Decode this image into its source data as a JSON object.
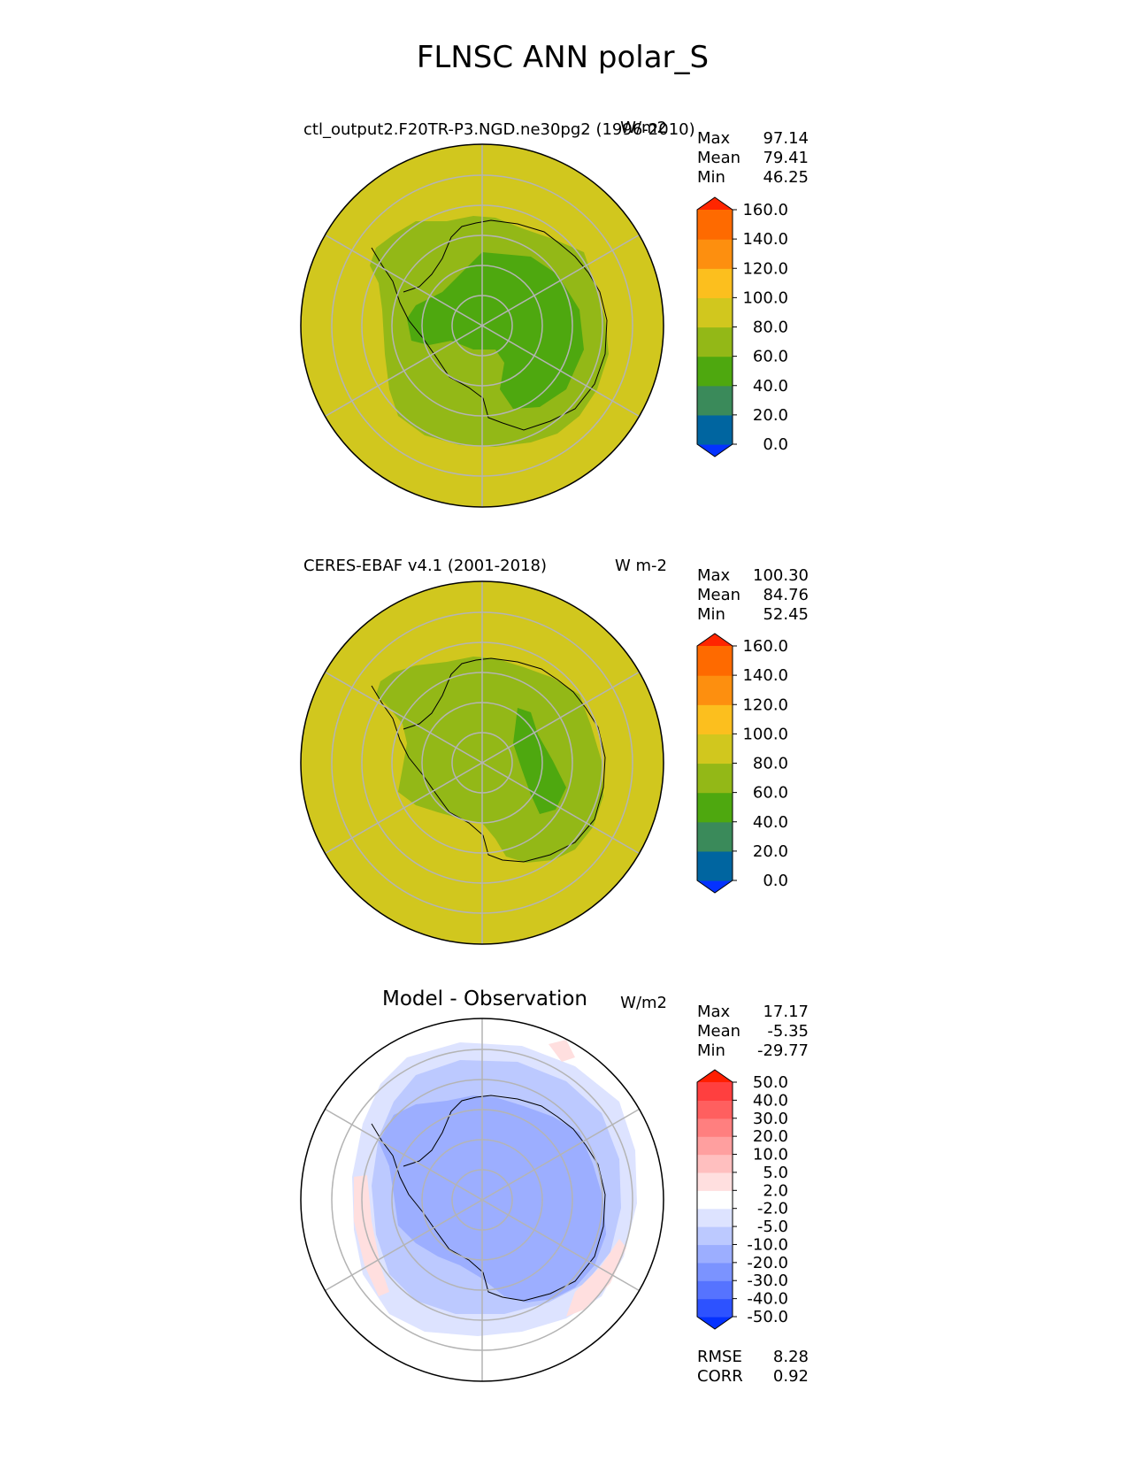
{
  "figure": {
    "title": "FLNSC ANN polar_S"
  },
  "colors": {
    "ocean_field": "#d1c71e",
    "continent_field": "#93b817",
    "interior_field": "#4ea80f",
    "coastline": "#000000",
    "grid": "#b4b4b4"
  },
  "chart_data": [
    {
      "type": "heatmap",
      "projection": "south-polar-stereographic",
      "title": "ctl_output2.F20TR-P3.NGD.ne30pg2 (1996-2010)",
      "units": "W/m2",
      "stats": [
        {
          "label": "Max",
          "value": "97.14"
        },
        {
          "label": "Mean",
          "value": "79.41"
        },
        {
          "label": "Min",
          "value": "46.25"
        }
      ],
      "colorbar": {
        "extend": "both",
        "levels": [
          0,
          20,
          40,
          60,
          80,
          100,
          120,
          140,
          160
        ],
        "tick_labels": [
          "0.0",
          "20.0",
          "40.0",
          "60.0",
          "80.0",
          "100.0",
          "120.0",
          "140.0",
          "160.0"
        ],
        "colors": [
          "#0432ff",
          "#0065a0",
          "#3a8a5a",
          "#4ea80f",
          "#93b817",
          "#d1c71e",
          "#fcbf1e",
          "#fd8f0f",
          "#fe6a00",
          "#ff2600"
        ]
      }
    },
    {
      "type": "heatmap",
      "projection": "south-polar-stereographic",
      "title": "CERES-EBAF v4.1 (2001-2018)",
      "units": "W m-2",
      "stats": [
        {
          "label": "Max",
          "value": "100.30"
        },
        {
          "label": "Mean",
          "value": "84.76"
        },
        {
          "label": "Min",
          "value": "52.45"
        }
      ],
      "colorbar": {
        "extend": "both",
        "levels": [
          0,
          20,
          40,
          60,
          80,
          100,
          120,
          140,
          160
        ],
        "tick_labels": [
          "0.0",
          "20.0",
          "40.0",
          "60.0",
          "80.0",
          "100.0",
          "120.0",
          "140.0",
          "160.0"
        ],
        "colors": [
          "#0432ff",
          "#0065a0",
          "#3a8a5a",
          "#4ea80f",
          "#93b817",
          "#d1c71e",
          "#fcbf1e",
          "#fd8f0f",
          "#fe6a00",
          "#ff2600"
        ]
      }
    },
    {
      "type": "heatmap",
      "projection": "south-polar-stereographic",
      "title": "Model - Observation",
      "units": "W/m2",
      "stats": [
        {
          "label": "Max",
          "value": "17.17"
        },
        {
          "label": "Mean",
          "value": "-5.35"
        },
        {
          "label": "Min",
          "value": "-29.77"
        }
      ],
      "metrics": [
        {
          "label": "RMSE",
          "value": "8.28"
        },
        {
          "label": "CORR",
          "value": "0.92"
        }
      ],
      "colorbar": {
        "extend": "both",
        "levels": [
          -50,
          -40,
          -30,
          -20,
          -10,
          -5,
          -2,
          2,
          5,
          10,
          20,
          30,
          40,
          50
        ],
        "tick_labels": [
          "-50.0",
          "-40.0",
          "-30.0",
          "-20.0",
          "-10.0",
          "-5.0",
          "-2.0",
          "2.0",
          "5.0",
          "10.0",
          "20.0",
          "30.0",
          "40.0",
          "50.0"
        ],
        "colors": [
          "#0431ff",
          "#2d52ff",
          "#5673ff",
          "#7b93ff",
          "#9caeff",
          "#bcc9ff",
          "#dde3ff",
          "#ffffff",
          "#ffdfdf",
          "#ffbfbf",
          "#ff9f9f",
          "#ff7f7f",
          "#ff5f5f",
          "#ff3f3f",
          "#ff1f00"
        ]
      }
    }
  ]
}
